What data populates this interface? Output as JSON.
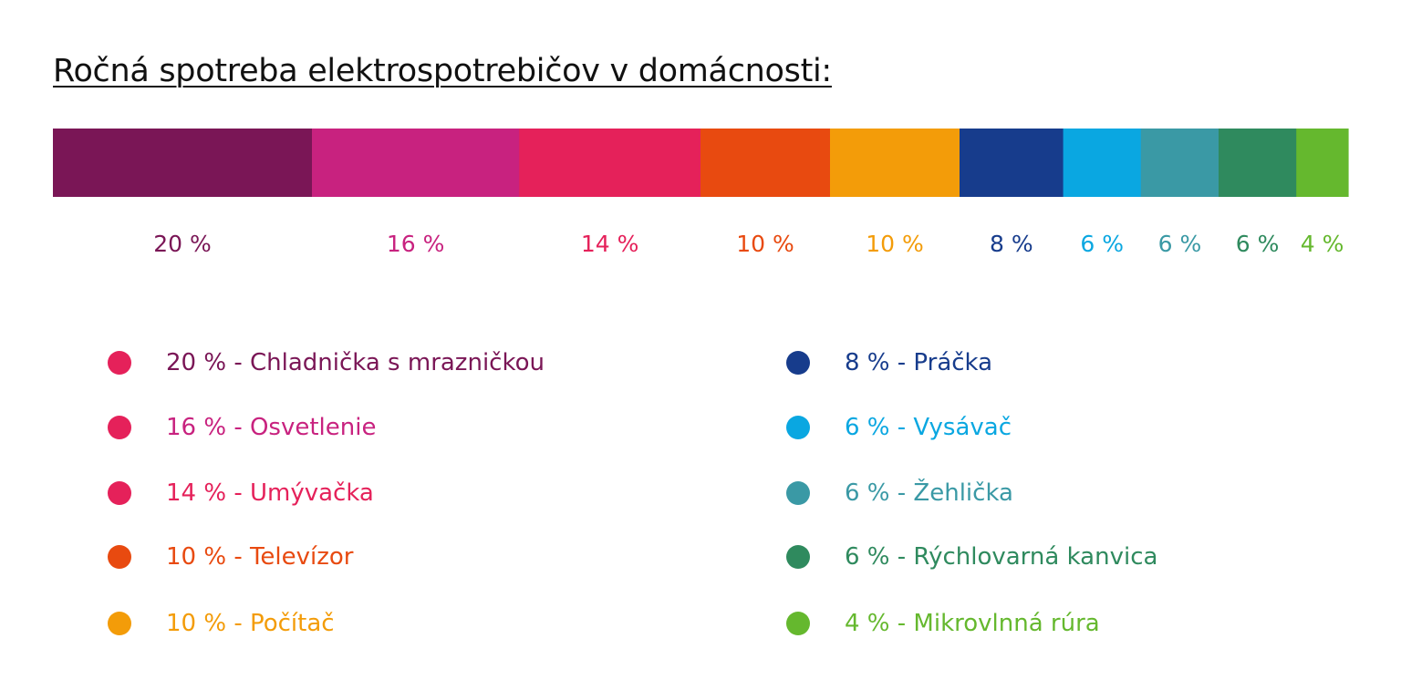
{
  "chart_data": {
    "type": "bar",
    "orientation": "horizontal-stacked",
    "title": "Ročná spotreba elektrospotrebičov v domácnosti:",
    "value_unit": "%",
    "categories": [
      "Chladnička s mrazničkou",
      "Osvetlenie",
      "Umývačka",
      "Televízor",
      "Počítač",
      "Práčka",
      "Vysávač",
      "Žehlička",
      "Rýchlovarná kanvica",
      "Mikrovlnná rúra"
    ],
    "values": [
      20,
      16,
      14,
      10,
      10,
      8,
      6,
      6,
      6,
      4
    ],
    "data_labels": [
      "20 %",
      "16 %",
      "14 %",
      "10 %",
      "10 %",
      "8 %",
      "6 %",
      "6 %",
      "6 %",
      "4 %"
    ],
    "segment_colors": [
      "#7a1656",
      "#c8227f",
      "#e5215a",
      "#e84a10",
      "#f39c09",
      "#173c8c",
      "#0aa7e1",
      "#3a99a5",
      "#2f8a5e",
      "#65b82e"
    ],
    "legend_dot_colors": [
      "#e5215a",
      "#e5215a",
      "#e5215a",
      "#e84a10",
      "#f39c09",
      "#173c8c",
      "#0aa7e1",
      "#3a99a5",
      "#2f8a5e",
      "#65b82e"
    ],
    "legend_entries": [
      "20 % - Chladnička s mrazničkou",
      "16 % - Osvetlenie",
      "14 % - Umývačka",
      "10 % - Televízor",
      "10 % - Počítač",
      "8 % - Práčka",
      "6 % - Vysávač",
      "6 % - Žehlička",
      "6 % - Rýchlovarná kanvica",
      "4 % - Mikrovlnná rúra"
    ],
    "legend_placement": "bottom, two columns",
    "grid": false
  }
}
